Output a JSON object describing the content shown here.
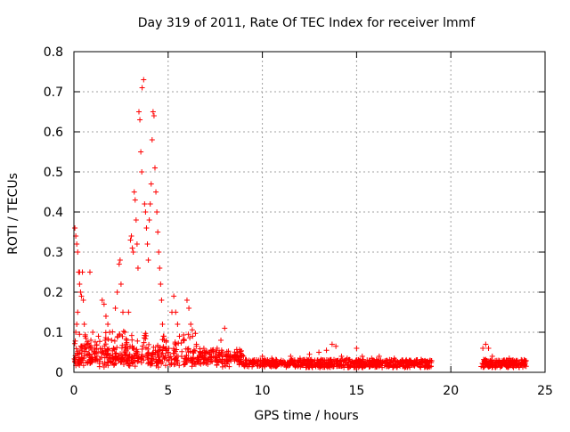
{
  "chart_data": {
    "type": "scatter",
    "title": "Day 319 of 2011, Rate Of TEC Index for receiver lmmf",
    "xlabel": "GPS time / hours",
    "ylabel": "ROTI / TECUs",
    "xlim": [
      0,
      25
    ],
    "ylim": [
      0,
      0.8
    ],
    "xticks": [
      0,
      5,
      10,
      15,
      20,
      25
    ],
    "xtick_labels": [
      "0",
      "5",
      "10",
      "15",
      "20",
      "25"
    ],
    "yticks": [
      0,
      0.1,
      0.2,
      0.3,
      0.4,
      0.5,
      0.6,
      0.7,
      0.8
    ],
    "ytick_labels": [
      "0",
      "0.1",
      "0.2",
      "0.3",
      "0.4",
      "0.5",
      "0.6",
      "0.7",
      "0.8"
    ],
    "grid": true,
    "legend": "none",
    "marker": "+",
    "color": "#ff0000",
    "gap_hours": [
      19.0,
      21.6
    ],
    "series": [
      {
        "name": "ROTI",
        "points": [
          [
            0.05,
            0.36
          ],
          [
            0.1,
            0.34
          ],
          [
            0.15,
            0.32
          ],
          [
            0.2,
            0.3
          ],
          [
            0.25,
            0.25
          ],
          [
            0.3,
            0.22
          ],
          [
            0.35,
            0.2
          ],
          [
            0.4,
            0.19
          ],
          [
            0.2,
            0.15
          ],
          [
            0.15,
            0.12
          ],
          [
            0.1,
            0.1
          ],
          [
            0.3,
            0.25
          ],
          [
            0.45,
            0.25
          ],
          [
            0.5,
            0.18
          ],
          [
            0.55,
            0.12
          ],
          [
            0.6,
            0.09
          ],
          [
            0.7,
            0.07
          ],
          [
            0.8,
            0.06
          ],
          [
            0.9,
            0.08
          ],
          [
            1.0,
            0.1
          ],
          [
            1.1,
            0.06
          ],
          [
            0.85,
            0.25
          ],
          [
            1.3,
            0.09
          ],
          [
            1.5,
            0.18
          ],
          [
            1.6,
            0.17
          ],
          [
            1.7,
            0.14
          ],
          [
            1.8,
            0.12
          ],
          [
            1.9,
            0.1
          ],
          [
            2.0,
            0.08
          ],
          [
            2.1,
            0.06
          ],
          [
            2.2,
            0.16
          ],
          [
            2.3,
            0.2
          ],
          [
            2.4,
            0.27
          ],
          [
            2.45,
            0.28
          ],
          [
            2.5,
            0.22
          ],
          [
            2.6,
            0.15
          ],
          [
            2.7,
            0.1
          ],
          [
            2.8,
            0.08
          ],
          [
            2.9,
            0.15
          ],
          [
            3.0,
            0.33
          ],
          [
            3.05,
            0.34
          ],
          [
            3.1,
            0.31
          ],
          [
            3.15,
            0.3
          ],
          [
            3.2,
            0.45
          ],
          [
            3.25,
            0.43
          ],
          [
            3.3,
            0.38
          ],
          [
            3.35,
            0.32
          ],
          [
            3.4,
            0.26
          ],
          [
            3.45,
            0.65
          ],
          [
            3.5,
            0.63
          ],
          [
            3.55,
            0.55
          ],
          [
            3.6,
            0.5
          ],
          [
            3.62,
            0.71
          ],
          [
            3.7,
            0.73
          ],
          [
            3.75,
            0.42
          ],
          [
            3.8,
            0.4
          ],
          [
            3.85,
            0.36
          ],
          [
            3.9,
            0.32
          ],
          [
            3.95,
            0.28
          ],
          [
            4.0,
            0.38
          ],
          [
            4.05,
            0.42
          ],
          [
            4.1,
            0.47
          ],
          [
            4.15,
            0.58
          ],
          [
            4.2,
            0.65
          ],
          [
            4.25,
            0.64
          ],
          [
            4.3,
            0.51
          ],
          [
            4.35,
            0.45
          ],
          [
            4.4,
            0.4
          ],
          [
            4.45,
            0.35
          ],
          [
            4.5,
            0.3
          ],
          [
            4.55,
            0.26
          ],
          [
            4.6,
            0.22
          ],
          [
            4.65,
            0.18
          ],
          [
            4.7,
            0.12
          ],
          [
            4.8,
            0.08
          ],
          [
            4.9,
            0.06
          ],
          [
            5.0,
            0.05
          ],
          [
            5.2,
            0.15
          ],
          [
            5.3,
            0.19
          ],
          [
            5.4,
            0.15
          ],
          [
            5.5,
            0.12
          ],
          [
            5.6,
            0.09
          ],
          [
            5.8,
            0.08
          ],
          [
            6.0,
            0.18
          ],
          [
            6.1,
            0.16
          ],
          [
            6.2,
            0.12
          ],
          [
            6.3,
            0.09
          ],
          [
            6.5,
            0.07
          ],
          [
            6.7,
            0.05
          ],
          [
            7.0,
            0.03
          ],
          [
            7.3,
            0.04
          ],
          [
            7.6,
            0.06
          ],
          [
            7.8,
            0.08
          ],
          [
            8.0,
            0.11
          ],
          [
            8.3,
            0.04
          ],
          [
            8.7,
            0.03
          ],
          [
            9.0,
            0.04
          ],
          [
            9.5,
            0.03
          ],
          [
            10.0,
            0.04
          ],
          [
            10.5,
            0.035
          ],
          [
            11.0,
            0.03
          ],
          [
            11.5,
            0.04
          ],
          [
            12.0,
            0.035
          ],
          [
            12.5,
            0.045
          ],
          [
            13.0,
            0.05
          ],
          [
            13.4,
            0.055
          ],
          [
            13.7,
            0.07
          ],
          [
            13.9,
            0.065
          ],
          [
            14.2,
            0.04
          ],
          [
            14.5,
            0.035
          ],
          [
            15.0,
            0.06
          ],
          [
            15.3,
            0.04
          ],
          [
            15.8,
            0.035
          ],
          [
            16.2,
            0.04
          ],
          [
            16.6,
            0.03
          ],
          [
            17.0,
            0.035
          ],
          [
            17.4,
            0.03
          ],
          [
            17.8,
            0.03
          ],
          [
            18.2,
            0.025
          ],
          [
            18.6,
            0.028
          ],
          [
            18.9,
            0.03
          ],
          [
            21.7,
            0.06
          ],
          [
            21.85,
            0.07
          ],
          [
            22.0,
            0.06
          ],
          [
            22.2,
            0.04
          ],
          [
            22.5,
            0.025
          ],
          [
            22.8,
            0.03
          ],
          [
            23.1,
            0.035
          ],
          [
            23.4,
            0.025
          ],
          [
            23.7,
            0.02
          ],
          [
            23.9,
            0.018
          ]
        ]
      }
    ]
  }
}
